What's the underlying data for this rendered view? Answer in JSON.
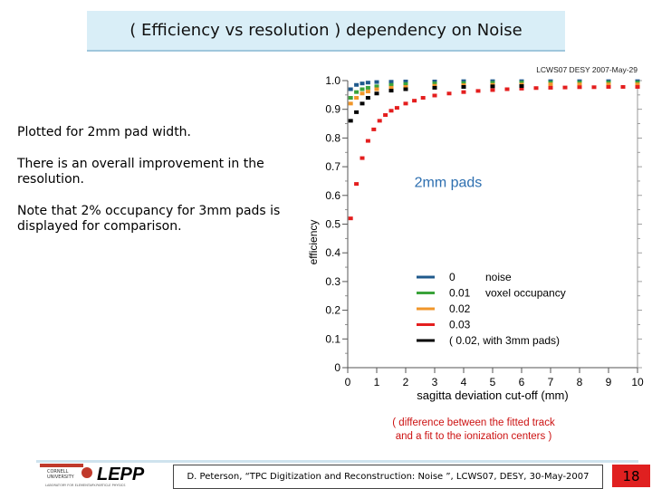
{
  "slide": {
    "title": "( Efficiency vs resolution ) dependency on Noise",
    "bullets": [
      "Plotted for 2mm pad width.",
      "There is an overall improvement in the resolution.",
      "Note that 2% occupancy for 3mm pads is displayed for comparison."
    ],
    "caption_line1": "( difference between the fitted track",
    "caption_line2": "and a fit to the ionization centers )",
    "footer": "D. Peterson, “TPC Digitization and Reconstruction: Noise ”, LCWS07, DESY, 30-May-2007",
    "page_number": "18",
    "logo_small_top": "CORNELL",
    "logo_small_bottom": "UNIVERSITY",
    "logo_text": "LEPP",
    "logo_subtitle": "LABORATORY FOR ELEMENTARY-PARTICLE PHYSICS"
  },
  "colors": {
    "title_bg": "#d9eef7",
    "caption": "#cc1111",
    "page_badge": "#e02020",
    "noise_0": "#1f5a8c",
    "noise_0.01": "#3aa33a",
    "noise_0.02": "#f0962a",
    "noise_0.03": "#e41e1e",
    "noise_3mm": "#000000"
  },
  "chart_data": {
    "type": "scatter",
    "header": "LCWS07 DESY 2007-May-29",
    "annotation": "2mm pads",
    "xlabel": "sagitta deviation cut-off (mm)",
    "ylabel": "efficiency",
    "xlim": [
      0,
      10
    ],
    "ylim": [
      0,
      1.0
    ],
    "xticks": [
      "0",
      "1",
      "2",
      "3",
      "4",
      "5",
      "6",
      "7",
      "8",
      "9",
      "10"
    ],
    "yticks": [
      "0",
      "0.1",
      "0.2",
      "0.3",
      "0.4",
      "0.5",
      "0.6",
      "0.7",
      "0.8",
      "0.9",
      "1.0"
    ],
    "legend_title": "noise",
    "legend_position": "bottom-right",
    "series": [
      {
        "name": "0",
        "label_suffix": "",
        "color": "#1f5a8c",
        "x": [
          0.1,
          0.3,
          0.5,
          0.7,
          1.0,
          1.5,
          2.0,
          3.0,
          4.0,
          5.0,
          6.0,
          7.0,
          8.0,
          9.0,
          10.0
        ],
        "y": [
          0.97,
          0.985,
          0.99,
          0.993,
          0.995,
          0.996,
          0.997,
          0.997,
          0.998,
          0.998,
          0.998,
          0.998,
          0.998,
          0.998,
          0.998
        ]
      },
      {
        "name": "0.01",
        "label_suffix": "voxel occupancy",
        "color": "#3aa33a",
        "x": [
          0.1,
          0.3,
          0.5,
          0.7,
          1.0,
          1.5,
          2.0,
          3.0,
          4.0,
          5.0,
          6.0,
          7.0,
          8.0,
          9.0,
          10.0
        ],
        "y": [
          0.94,
          0.96,
          0.97,
          0.975,
          0.98,
          0.985,
          0.988,
          0.99,
          0.991,
          0.992,
          0.993,
          0.993,
          0.993,
          0.993,
          0.993
        ]
      },
      {
        "name": "0.02",
        "label_suffix": "",
        "color": "#f0962a",
        "x": [
          0.1,
          0.3,
          0.5,
          0.7,
          1.0,
          1.5,
          2.0,
          3.0,
          4.0,
          5.0,
          6.0,
          7.0,
          8.0,
          9.0,
          10.0
        ],
        "y": [
          0.92,
          0.94,
          0.955,
          0.962,
          0.97,
          0.975,
          0.978,
          0.982,
          0.984,
          0.985,
          0.986,
          0.987,
          0.987,
          0.987,
          0.987
        ]
      },
      {
        "name": "0.03",
        "label_suffix": "",
        "color": "#e41e1e",
        "x": [
          0.1,
          0.3,
          0.5,
          0.7,
          0.9,
          1.1,
          1.3,
          1.5,
          1.7,
          2.0,
          2.3,
          2.6,
          3.0,
          3.5,
          4.0,
          4.5,
          5.0,
          5.5,
          6.0,
          6.5,
          7.0,
          7.5,
          8.0,
          8.5,
          9.0,
          9.5,
          10.0
        ],
        "y": [
          0.52,
          0.64,
          0.73,
          0.79,
          0.83,
          0.86,
          0.88,
          0.895,
          0.905,
          0.92,
          0.93,
          0.94,
          0.948,
          0.955,
          0.96,
          0.964,
          0.967,
          0.97,
          0.972,
          0.974,
          0.975,
          0.976,
          0.977,
          0.977,
          0.978,
          0.978,
          0.978
        ]
      },
      {
        "name": "( 0.02, with 3mm pads)",
        "label_suffix": "",
        "color": "#000000",
        "x": [
          0.1,
          0.3,
          0.5,
          0.7,
          1.0,
          1.5,
          2.0,
          3.0,
          4.0,
          5.0,
          6.0
        ],
        "y": [
          0.86,
          0.89,
          0.92,
          0.94,
          0.955,
          0.965,
          0.97,
          0.975,
          0.978,
          0.98,
          0.981
        ]
      }
    ]
  }
}
